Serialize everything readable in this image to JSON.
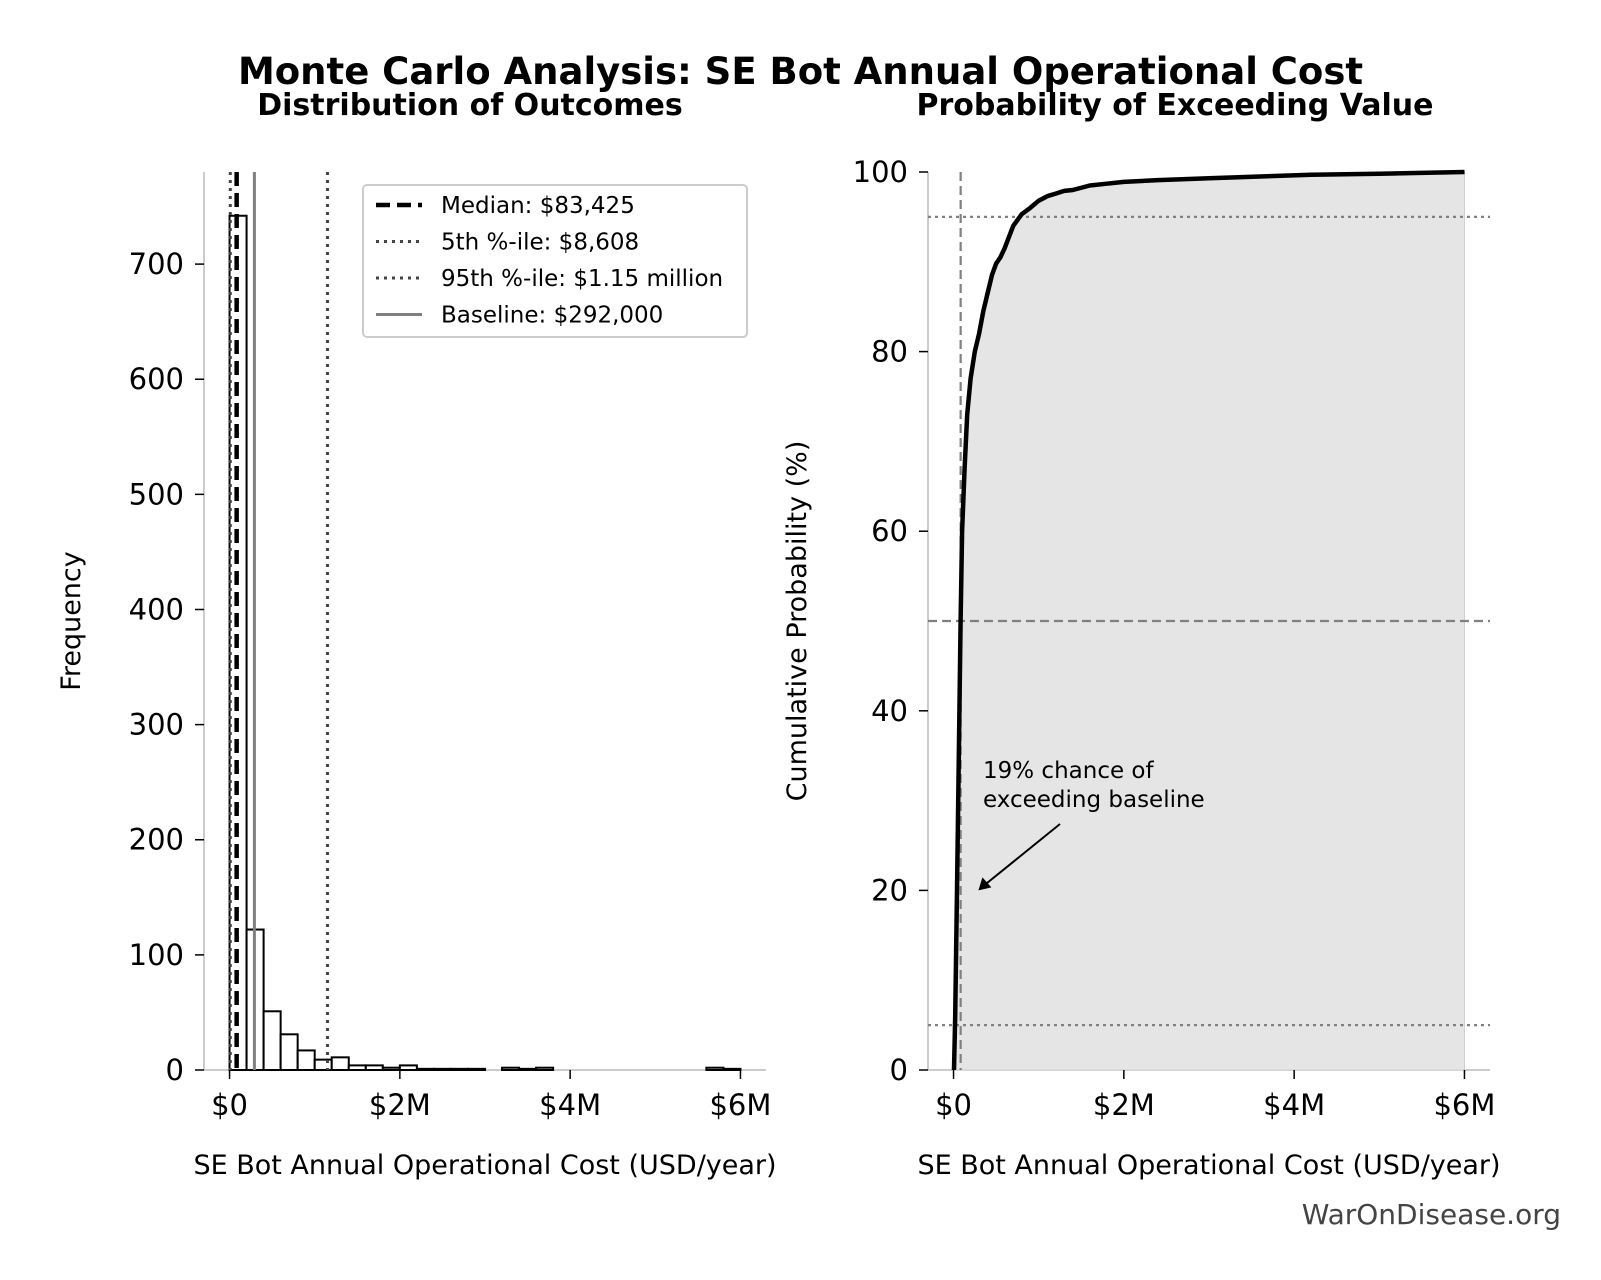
{
  "figure": {
    "title": "Monte Carlo Analysis: SE Bot Annual Operational Cost",
    "watermark": "WarOnDisease.org"
  },
  "chart_data": [
    {
      "type": "bar",
      "subtitle": "Distribution of Outcomes",
      "xlabel": "SE Bot Annual Operational Cost (USD/year)",
      "ylabel": "Frequency",
      "xlim": [
        -300000,
        6300000
      ],
      "ylim": [
        0,
        780
      ],
      "xticks": [
        0,
        2000000,
        4000000,
        6000000
      ],
      "xtick_labels": [
        "$0",
        "$2M",
        "$4M",
        "$6M"
      ],
      "yticks": [
        0,
        100,
        200,
        300,
        400,
        500,
        600,
        700
      ],
      "ytick_labels": [
        "0",
        "100",
        "200",
        "300",
        "400",
        "500",
        "600",
        "700"
      ],
      "bin_width": 200000,
      "bin_starts": [
        0,
        200000,
        400000,
        600000,
        800000,
        1000000,
        1200000,
        1400000,
        1600000,
        1800000,
        2000000,
        2200000,
        2400000,
        2600000,
        2800000,
        3000000,
        3200000,
        3400000,
        3600000,
        3800000,
        4000000,
        4200000,
        4400000,
        4600000,
        4800000,
        5000000,
        5200000,
        5400000,
        5600000,
        5800000
      ],
      "values": [
        742,
        122,
        51,
        31,
        17,
        9,
        11,
        4,
        4,
        2,
        4,
        1,
        1,
        1,
        1,
        0,
        2,
        1,
        2,
        0,
        0,
        0,
        0,
        0,
        0,
        0,
        0,
        0,
        2,
        1
      ],
      "reference_lines": [
        {
          "label": "Median: $83,425",
          "value": 83425,
          "style": "dashed",
          "color": "#000000"
        },
        {
          "label": "5th %-ile: $8,608",
          "value": 8608,
          "style": "dotted",
          "color": "#444444"
        },
        {
          "label": "95th %-ile: $1.15 million",
          "value": 1150000,
          "style": "dotted",
          "color": "#444444"
        },
        {
          "label": "Baseline: $292,000",
          "value": 292000,
          "style": "solid",
          "color": "#808080"
        }
      ],
      "legend_position": "top-right"
    },
    {
      "type": "area",
      "subtitle": "Probability of Exceeding Value",
      "xlabel": "SE Bot Annual Operational Cost (USD/year)",
      "ylabel": "Cumulative Probability (%)",
      "xlim": [
        -300000,
        6300000
      ],
      "ylim": [
        0,
        100
      ],
      "xticks": [
        0,
        2000000,
        4000000,
        6000000
      ],
      "xtick_labels": [
        "$0",
        "$2M",
        "$4M",
        "$6M"
      ],
      "yticks": [
        0,
        20,
        40,
        60,
        80,
        100
      ],
      "ytick_labels": [
        "0",
        "20",
        "40",
        "60",
        "80",
        "100"
      ],
      "x": [
        5000,
        20000,
        40000,
        60000,
        83425,
        100000,
        130000,
        160000,
        200000,
        250000,
        300000,
        350000,
        400000,
        450000,
        500000,
        550000,
        600000,
        700000,
        800000,
        900000,
        1000000,
        1100000,
        1200000,
        1300000,
        1400000,
        1600000,
        1800000,
        2000000,
        2400000,
        3000000,
        3600000,
        4200000,
        5000000,
        6000000
      ],
      "y": [
        0,
        6,
        20,
        34,
        50,
        60,
        67,
        73,
        77,
        80,
        82,
        84.5,
        86.5,
        88.5,
        89.8,
        90.5,
        91.5,
        94,
        95.3,
        96,
        96.8,
        97.3,
        97.6,
        97.9,
        98,
        98.5,
        98.7,
        98.9,
        99.1,
        99.3,
        99.5,
        99.7,
        99.8,
        100
      ],
      "reference_lines": [
        {
          "axis": "x",
          "value": 83425,
          "style": "dashed",
          "color": "#808080"
        },
        {
          "axis": "y",
          "value": 95,
          "style": "dotted",
          "color": "#808080"
        },
        {
          "axis": "y",
          "value": 50,
          "style": "dashed",
          "color": "#808080"
        },
        {
          "axis": "y",
          "value": 5,
          "style": "dotted",
          "color": "#808080"
        }
      ],
      "annotation": {
        "text_lines": [
          "19% chance of",
          "exceeding baseline"
        ],
        "arrow_target": [
          292000,
          20
        ]
      }
    }
  ]
}
